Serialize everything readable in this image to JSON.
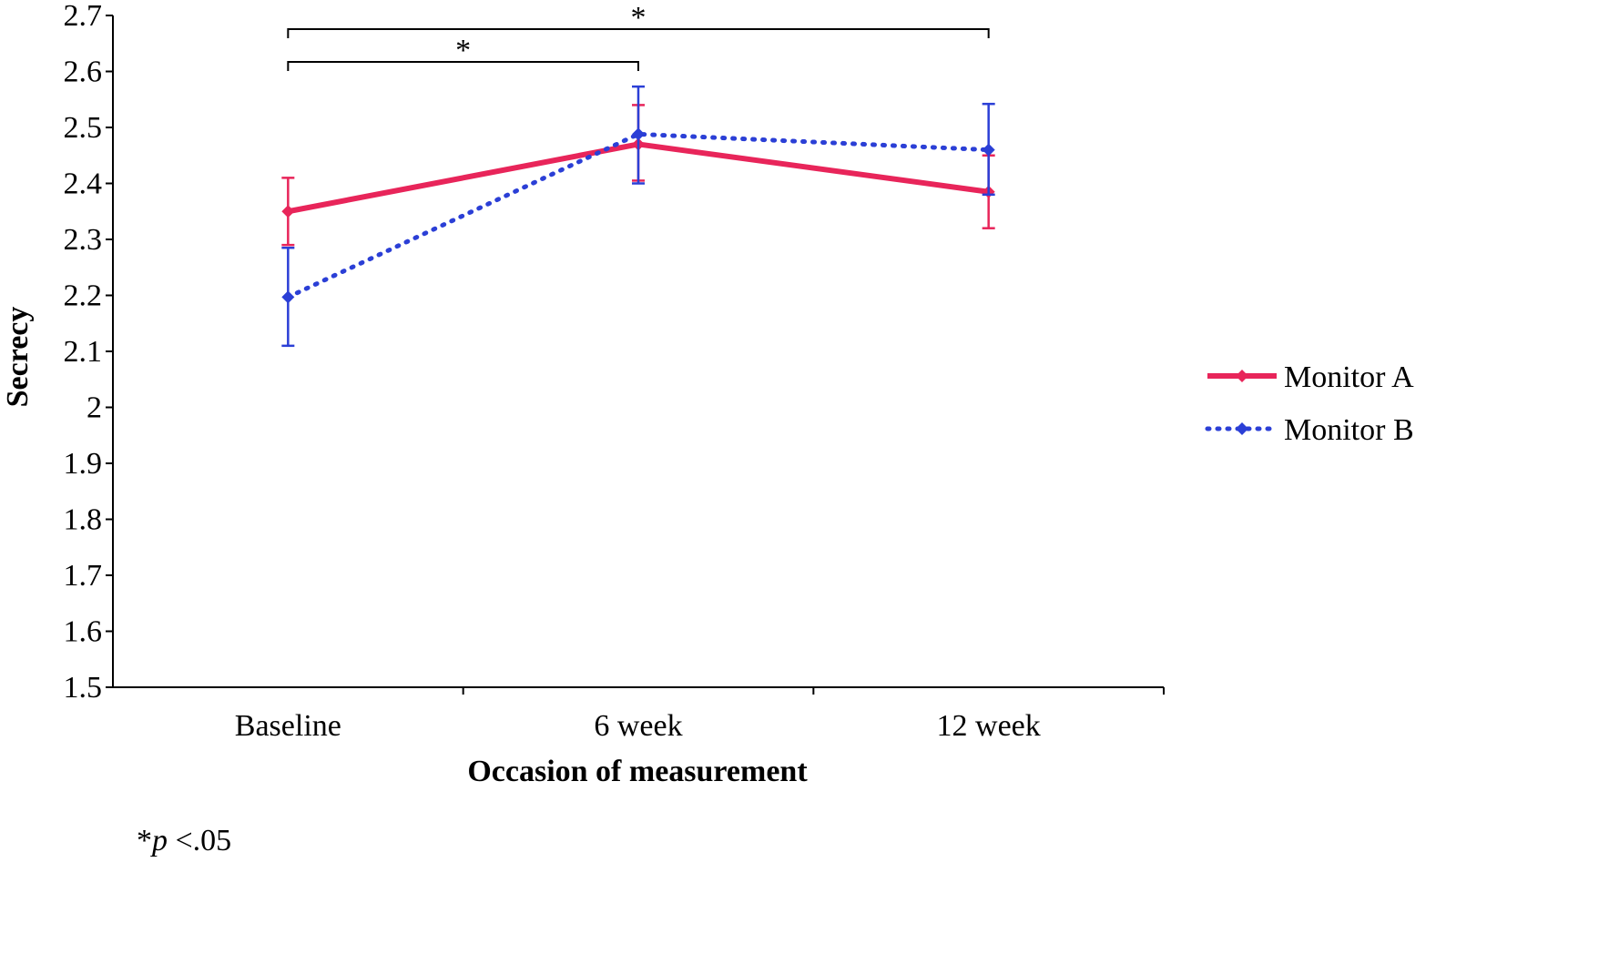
{
  "chart_data": {
    "type": "line",
    "title": "",
    "xlabel": "Occasion of measurement",
    "ylabel": "Secrecy",
    "categories": [
      "Baseline",
      "6 week",
      "12 week"
    ],
    "ylim": [
      1.5,
      2.7
    ],
    "yticks": [
      "1.5",
      "1.6",
      "1.7",
      "1.8",
      "1.9",
      "2",
      "2.1",
      "2.2",
      "2.3",
      "2.4",
      "2.5",
      "2.6",
      "2.7"
    ],
    "grid": false,
    "legend_position": "right",
    "series": [
      {
        "name": "Monitor A",
        "values": [
          2.35,
          2.47,
          2.385
        ],
        "error_low": [
          2.29,
          2.405,
          2.32
        ],
        "error_high": [
          2.41,
          2.54,
          2.45
        ],
        "color": "#e8255a",
        "style": "solid"
      },
      {
        "name": "Monitor B",
        "values": [
          2.197,
          2.488,
          2.46
        ],
        "error_low": [
          2.11,
          2.4,
          2.38
        ],
        "error_high": [
          2.285,
          2.573,
          2.542
        ],
        "color": "#2b3fd6",
        "style": "dotted"
      }
    ],
    "significance": [
      {
        "from": "Baseline",
        "to": "6 week",
        "label": "*"
      },
      {
        "from": "Baseline",
        "to": "12 week",
        "label": "*"
      }
    ]
  },
  "footnote": {
    "star": "*",
    "p": "p",
    "rest": " <.05"
  }
}
